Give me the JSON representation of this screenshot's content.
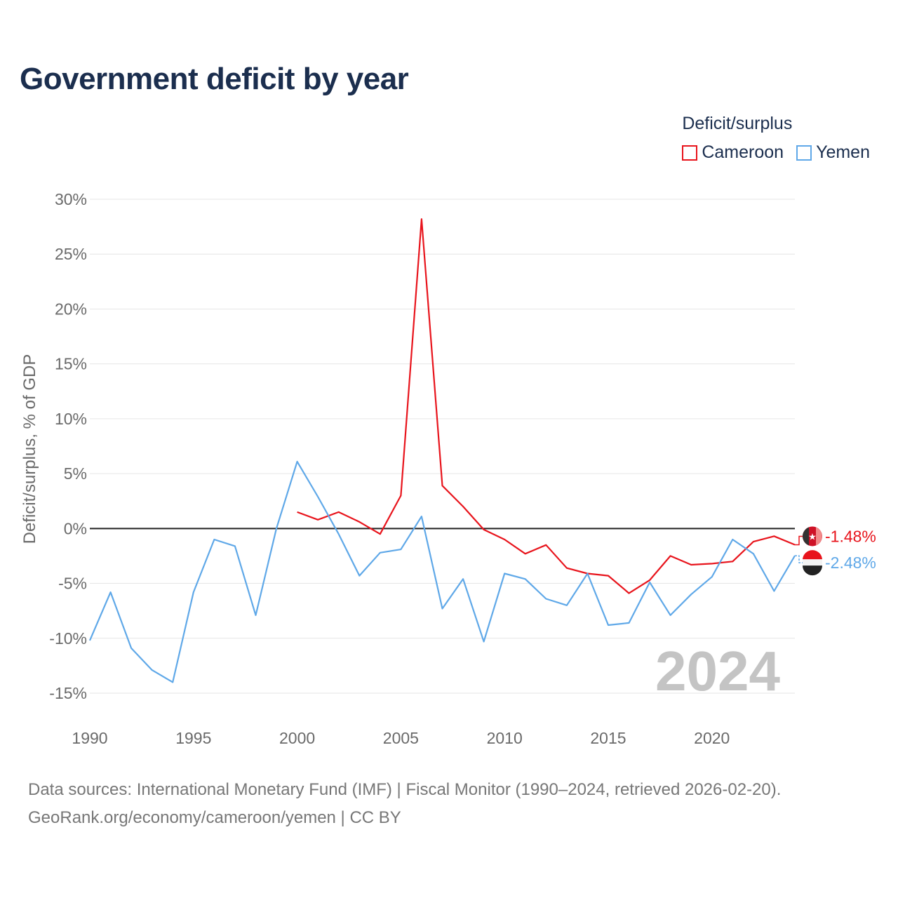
{
  "title": "Government deficit by year",
  "legend": {
    "title": "Deficit/surplus",
    "items": [
      {
        "name": "Cameroon",
        "color": "#e8141c"
      },
      {
        "name": "Yemen",
        "color": "#5fa8e8"
      }
    ]
  },
  "watermark_year": "2024",
  "footer": {
    "line1": "Data sources: International Monetary Fund (IMF) | Fiscal Monitor (1990–2024, retrieved 2026-02-20).",
    "line2": "GeoRank.org/economy/cameroon/yemen | CC BY"
  },
  "chart_data": {
    "type": "line",
    "title": "Government deficit by year",
    "xlabel": "",
    "ylabel": "Deficit/surplus, % of GDP",
    "xlim": [
      1990,
      2024
    ],
    "ylim": [
      -15,
      30
    ],
    "x_ticks": [
      1990,
      1995,
      2000,
      2005,
      2010,
      2015,
      2020
    ],
    "y_ticks": [
      30,
      25,
      20,
      15,
      10,
      5,
      0,
      -5,
      -10,
      -15
    ],
    "y_tick_labels": [
      "30%",
      "25%",
      "20%",
      "15%",
      "10%",
      "5%",
      "0%",
      "-5%",
      "-10%",
      "-15%"
    ],
    "series": [
      {
        "name": "Cameroon",
        "color": "#e8141c",
        "end_label": "-1.48%",
        "x": [
          2000,
          2001,
          2002,
          2003,
          2004,
          2005,
          2006,
          2007,
          2008,
          2009,
          2010,
          2011,
          2012,
          2013,
          2014,
          2015,
          2016,
          2017,
          2018,
          2019,
          2020,
          2021,
          2022,
          2023,
          2024
        ],
        "values": [
          1.5,
          0.8,
          1.5,
          0.6,
          -0.5,
          3.0,
          28.2,
          3.9,
          2.0,
          -0.1,
          -1.0,
          -2.3,
          -1.5,
          -3.6,
          -4.1,
          -4.3,
          -5.9,
          -4.7,
          -2.5,
          -3.3,
          -3.2,
          -3.0,
          -1.2,
          -0.7,
          -1.48
        ]
      },
      {
        "name": "Yemen",
        "color": "#5fa8e8",
        "end_label": "-2.48%",
        "x": [
          1990,
          1991,
          1992,
          1993,
          1994,
          1995,
          1996,
          1997,
          1998,
          1999,
          2000,
          2001,
          2002,
          2003,
          2004,
          2005,
          2006,
          2007,
          2008,
          2009,
          2010,
          2011,
          2012,
          2013,
          2014,
          2015,
          2016,
          2017,
          2018,
          2019,
          2020,
          2021,
          2022,
          2023,
          2024
        ],
        "values": [
          -10.2,
          -5.8,
          -10.9,
          -12.9,
          -14.0,
          -5.8,
          -1.0,
          -1.6,
          -7.9,
          0.0,
          6.1,
          2.9,
          -0.5,
          -4.3,
          -2.2,
          -1.9,
          1.1,
          -7.3,
          -4.6,
          -10.3,
          -4.1,
          -4.6,
          -6.4,
          -7.0,
          -4.1,
          -8.8,
          -8.6,
          -4.9,
          -7.9,
          -6.0,
          -4.4,
          -1.0,
          -2.3,
          -5.7,
          -2.48
        ]
      }
    ],
    "zero_line": true,
    "grid": true,
    "legend_position": "top-right"
  }
}
